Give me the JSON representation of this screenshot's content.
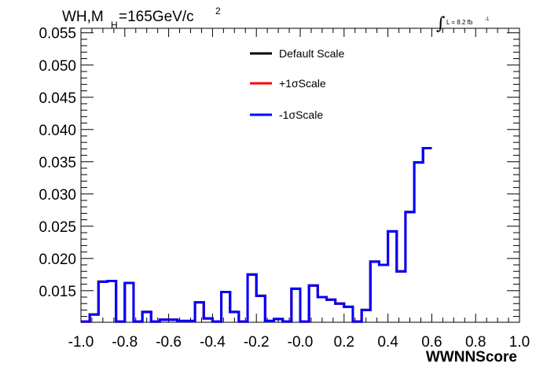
{
  "chart_data": {
    "type": "line",
    "title_main": "WH,M",
    "title_sub": "H",
    "title_rest": "=165GeV/c",
    "title_sup": "2",
    "lumi_label": "L = 8.2 fb",
    "lumi_sup": "-1",
    "lumi_integral": "∫",
    "xlabel": "WWNNScore",
    "xlim": [
      -1.0,
      1.0
    ],
    "ylim": [
      0.0101,
      0.0557
    ],
    "x_ticks": [
      "-1.0",
      "-0.8",
      "-0.6",
      "-0.4",
      "-0.2",
      "-0.0",
      "0.2",
      "0.4",
      "0.6",
      "0.8",
      "1.0"
    ],
    "x_tick_values": [
      -1.0,
      -0.8,
      -0.6,
      -0.4,
      -0.2,
      0.0,
      0.2,
      0.4,
      0.6,
      0.8,
      1.0
    ],
    "y_ticks": [
      "0.015",
      "0.020",
      "0.025",
      "0.030",
      "0.035",
      "0.040",
      "0.045",
      "0.050",
      "0.055"
    ],
    "y_tick_values": [
      0.015,
      0.02,
      0.025,
      0.03,
      0.035,
      0.04,
      0.045,
      0.05,
      0.055
    ],
    "bin_edges_start": -1.0,
    "bin_width": 0.04,
    "legend": {
      "entries": [
        {
          "label": "Default Scale",
          "color": "#000000"
        },
        {
          "label": "+1σScale",
          "color": "#ff0000"
        },
        {
          "label": "-1σScale",
          "color": "#0000ff"
        }
      ]
    },
    "series": [
      {
        "name": "-1σScale",
        "color": "#0000ff",
        "values": [
          0.0102,
          0.0113,
          0.0164,
          0.0165,
          0.0102,
          0.0162,
          0.0102,
          0.0117,
          0.0102,
          0.0105,
          0.0105,
          0.0103,
          0.0103,
          0.0132,
          0.0107,
          0.0102,
          0.0148,
          0.0117,
          0.0102,
          0.0175,
          0.0142,
          0.0103,
          0.0106,
          0.0102,
          0.0153,
          0.0102,
          0.0158,
          0.014,
          0.0136,
          0.013,
          0.0125,
          0.0102,
          0.012,
          0.0195,
          0.019,
          0.0242,
          0.018,
          0.0272,
          0.0349,
          0.0371
        ]
      }
    ]
  }
}
